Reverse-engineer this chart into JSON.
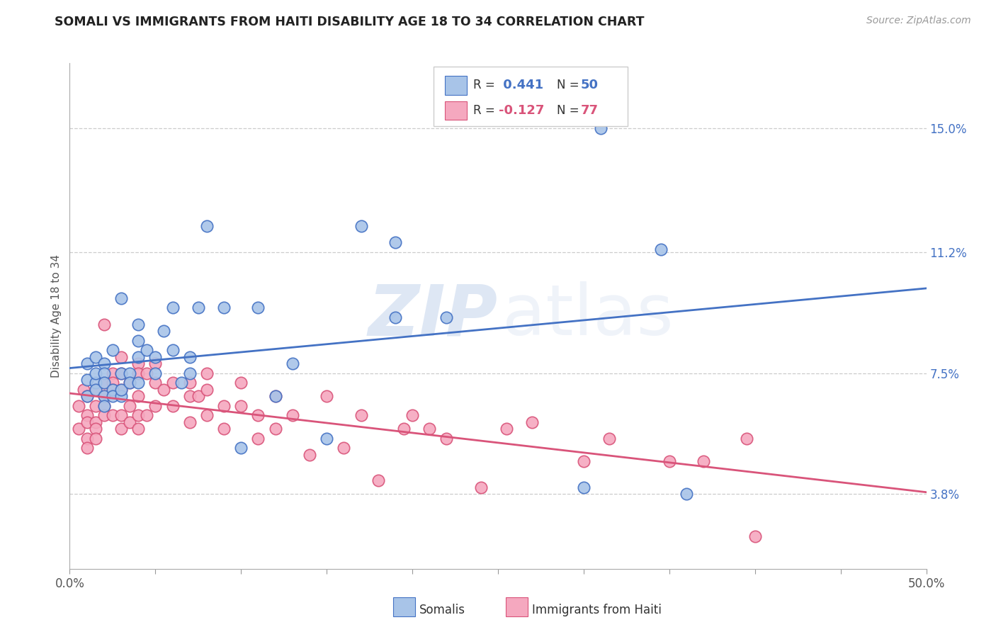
{
  "title": "SOMALI VS IMMIGRANTS FROM HAITI DISABILITY AGE 18 TO 34 CORRELATION CHART",
  "source": "Source: ZipAtlas.com",
  "ylabel": "Disability Age 18 to 34",
  "ylabel_ticks": [
    "3.8%",
    "7.5%",
    "11.2%",
    "15.0%"
  ],
  "ylabel_vals": [
    0.038,
    0.075,
    0.112,
    0.15
  ],
  "xlabel_ticks_shown": [
    "0.0%",
    "50.0%"
  ],
  "xlabel_ticks_pos": [
    0.0,
    0.5
  ],
  "xlabel_minor_ticks": [
    0.05,
    0.1,
    0.15,
    0.2,
    0.25,
    0.3,
    0.35,
    0.4,
    0.45
  ],
  "xlim": [
    0.0,
    0.5
  ],
  "ylim": [
    0.015,
    0.17
  ],
  "r_somali": 0.441,
  "n_somali": 50,
  "r_haiti": -0.127,
  "n_haiti": 77,
  "somali_color": "#a8c4e8",
  "somali_line_color": "#4472c4",
  "haiti_color": "#f5a8bf",
  "haiti_line_color": "#d9547a",
  "grid_color": "#cccccc",
  "background_color": "#ffffff",
  "watermark_zip": "ZIP",
  "watermark_atlas": "atlas",
  "legend_label_somali": "Somalis",
  "legend_label_haiti": "Immigrants from Haiti",
  "somali_x": [
    0.01,
    0.01,
    0.01,
    0.015,
    0.015,
    0.015,
    0.015,
    0.02,
    0.02,
    0.02,
    0.02,
    0.02,
    0.025,
    0.025,
    0.025,
    0.03,
    0.03,
    0.03,
    0.03,
    0.035,
    0.035,
    0.04,
    0.04,
    0.04,
    0.04,
    0.045,
    0.05,
    0.05,
    0.055,
    0.06,
    0.06,
    0.065,
    0.07,
    0.07,
    0.075,
    0.08,
    0.09,
    0.1,
    0.11,
    0.12,
    0.13,
    0.15,
    0.17,
    0.19,
    0.19,
    0.22,
    0.3,
    0.31,
    0.345,
    0.36
  ],
  "somali_y": [
    0.073,
    0.068,
    0.078,
    0.072,
    0.08,
    0.075,
    0.07,
    0.068,
    0.065,
    0.078,
    0.075,
    0.072,
    0.07,
    0.082,
    0.068,
    0.098,
    0.075,
    0.068,
    0.07,
    0.075,
    0.072,
    0.09,
    0.085,
    0.08,
    0.072,
    0.082,
    0.08,
    0.075,
    0.088,
    0.095,
    0.082,
    0.072,
    0.08,
    0.075,
    0.095,
    0.12,
    0.095,
    0.052,
    0.095,
    0.068,
    0.078,
    0.055,
    0.12,
    0.092,
    0.115,
    0.092,
    0.04,
    0.15,
    0.113,
    0.038
  ],
  "haiti_x": [
    0.005,
    0.005,
    0.008,
    0.01,
    0.01,
    0.01,
    0.01,
    0.01,
    0.015,
    0.015,
    0.015,
    0.015,
    0.015,
    0.02,
    0.02,
    0.02,
    0.02,
    0.02,
    0.025,
    0.025,
    0.025,
    0.025,
    0.03,
    0.03,
    0.03,
    0.03,
    0.03,
    0.035,
    0.035,
    0.035,
    0.04,
    0.04,
    0.04,
    0.04,
    0.04,
    0.045,
    0.045,
    0.05,
    0.05,
    0.05,
    0.055,
    0.06,
    0.06,
    0.07,
    0.07,
    0.07,
    0.075,
    0.08,
    0.08,
    0.08,
    0.09,
    0.09,
    0.1,
    0.1,
    0.11,
    0.11,
    0.12,
    0.12,
    0.13,
    0.14,
    0.15,
    0.16,
    0.17,
    0.18,
    0.195,
    0.2,
    0.21,
    0.22,
    0.24,
    0.255,
    0.27,
    0.3,
    0.315,
    0.35,
    0.37,
    0.395,
    0.4
  ],
  "haiti_y": [
    0.065,
    0.058,
    0.07,
    0.068,
    0.062,
    0.06,
    0.055,
    0.052,
    0.07,
    0.065,
    0.06,
    0.058,
    0.055,
    0.09,
    0.072,
    0.068,
    0.065,
    0.062,
    0.075,
    0.072,
    0.07,
    0.062,
    0.08,
    0.075,
    0.07,
    0.062,
    0.058,
    0.072,
    0.065,
    0.06,
    0.078,
    0.075,
    0.068,
    0.062,
    0.058,
    0.075,
    0.062,
    0.078,
    0.072,
    0.065,
    0.07,
    0.072,
    0.065,
    0.072,
    0.068,
    0.06,
    0.068,
    0.075,
    0.07,
    0.062,
    0.065,
    0.058,
    0.072,
    0.065,
    0.062,
    0.055,
    0.068,
    0.058,
    0.062,
    0.05,
    0.068,
    0.052,
    0.062,
    0.042,
    0.058,
    0.062,
    0.058,
    0.055,
    0.04,
    0.058,
    0.06,
    0.048,
    0.055,
    0.048,
    0.048,
    0.055,
    0.025
  ]
}
